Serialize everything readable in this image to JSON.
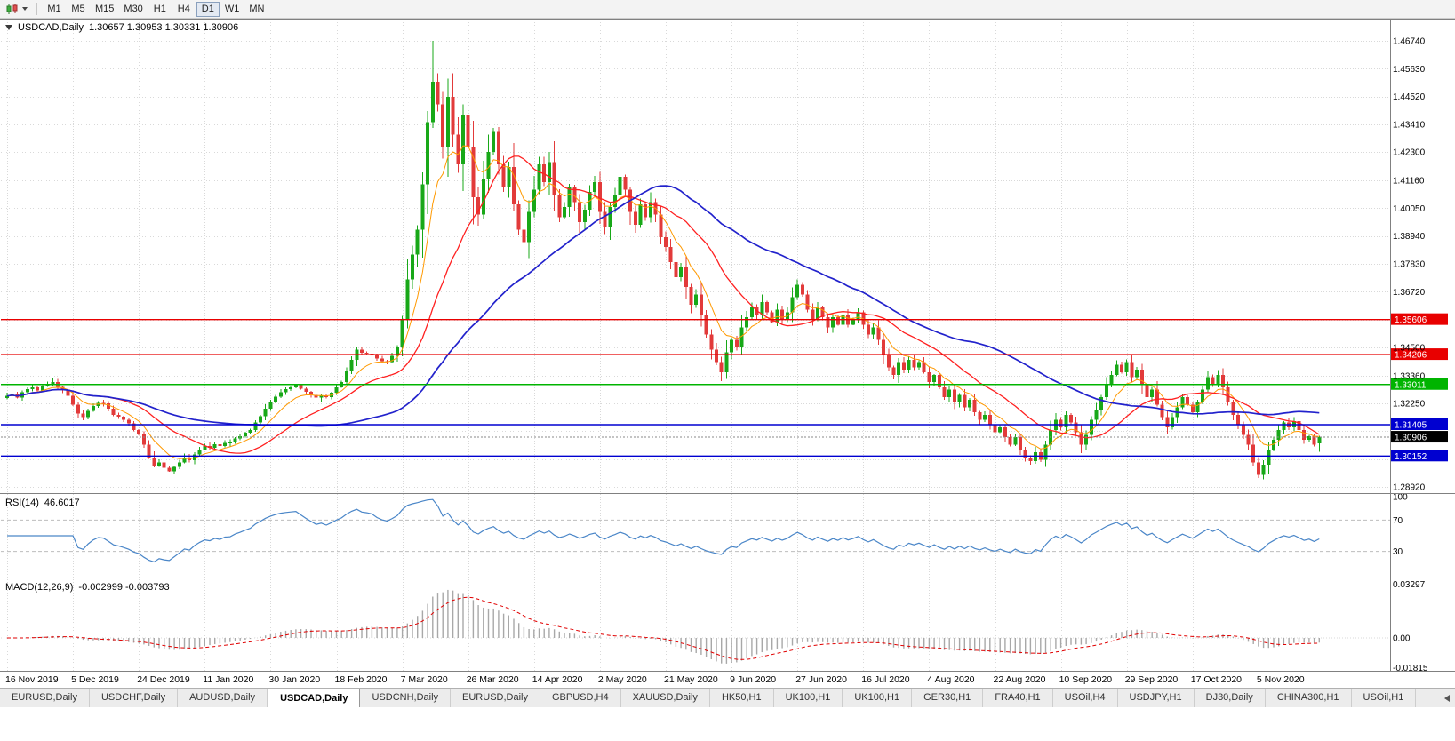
{
  "toolbar": {
    "timeframes": [
      "M1",
      "M5",
      "M15",
      "M30",
      "H1",
      "H4",
      "D1",
      "W1",
      "MN"
    ],
    "active_timeframe": "D1"
  },
  "chart": {
    "title": "USDCAD,Daily",
    "ohlc_text": "1.30657 1.30953 1.30331 1.30906"
  },
  "chart_data": {
    "type": "candlestick",
    "symbol": "USDCAD",
    "period": "Daily",
    "last_bar": {
      "open": 1.30657,
      "high": 1.30953,
      "low": 1.30331,
      "close": 1.30906
    },
    "y_axis_range": [
      1.2892,
      1.4674
    ],
    "y_tick_labels": [
      "1.46740",
      "1.45630",
      "1.44520",
      "1.43410",
      "1.42300",
      "1.41160",
      "1.40050",
      "1.38940",
      "1.37830",
      "1.36720",
      "1.34500",
      "1.33360",
      "1.32250",
      "1.28920"
    ],
    "y_gridlines": [
      1.4674,
      1.4563,
      1.4452,
      1.4341,
      1.423,
      1.4116,
      1.4005,
      1.3894,
      1.3783,
      1.3672,
      1.3561,
      1.345,
      1.3336,
      1.3225,
      1.3114,
      1.3003,
      1.2892
    ],
    "x_labels": [
      "16 Nov 2019",
      "5 Dec 2019",
      "24 Dec 2019",
      "11 Jan 2020",
      "30 Jan 2020",
      "18 Feb 2020",
      "7 Mar 2020",
      "26 Mar 2020",
      "14 Apr 2020",
      "2 May 2020",
      "21 May 2020",
      "9 Jun 2020",
      "27 Jun 2020",
      "16 Jul 2020",
      "4 Aug 2020",
      "22 Aug 2020",
      "10 Sep 2020",
      "29 Sep 2020",
      "17 Oct 2020",
      "5 Nov 2020"
    ],
    "bars_per_label": 13,
    "closes": [
      1.3255,
      1.3262,
      1.3248,
      1.327,
      1.3282,
      1.329,
      1.3278,
      1.3296,
      1.3304,
      1.331,
      1.3292,
      1.328,
      1.3255,
      1.322,
      1.3185,
      1.317,
      1.3195,
      1.3215,
      1.3228,
      1.3225,
      1.3205,
      1.318,
      1.3172,
      1.316,
      1.3145,
      1.312,
      1.3105,
      1.306,
      1.301,
      1.2975,
      1.299,
      1.2968,
      1.2955,
      1.2972,
      1.299,
      1.301,
      1.2998,
      1.3022,
      1.304,
      1.3055,
      1.3048,
      1.3062,
      1.3055,
      1.3068,
      1.307,
      1.3085,
      1.3095,
      1.3108,
      1.312,
      1.315,
      1.3175,
      1.3205,
      1.323,
      1.3252,
      1.327,
      1.3282,
      1.329,
      1.3298,
      1.3285,
      1.3272,
      1.326,
      1.3248,
      1.3258,
      1.325,
      1.3268,
      1.329,
      1.331,
      1.3355,
      1.34,
      1.344,
      1.3428,
      1.3425,
      1.342,
      1.3405,
      1.3395,
      1.339,
      1.3415,
      1.345,
      1.356,
      1.372,
      1.382,
      1.392,
      1.41,
      1.435,
      1.451,
      1.442,
      1.425,
      1.445,
      1.43,
      1.418,
      1.438,
      1.425,
      1.405,
      1.398,
      1.412,
      1.423,
      1.431,
      1.418,
      1.409,
      1.417,
      1.402,
      1.392,
      1.387,
      1.399,
      1.408,
      1.418,
      1.411,
      1.419,
      1.406,
      1.397,
      1.401,
      1.409,
      1.403,
      1.395,
      1.4,
      1.407,
      1.411,
      1.399,
      1.393,
      1.401,
      1.406,
      1.413,
      1.408,
      1.399,
      1.394,
      1.402,
      1.397,
      1.403,
      1.398,
      1.389,
      1.385,
      1.379,
      1.373,
      1.377,
      1.369,
      1.362,
      1.366,
      1.358,
      1.35,
      1.344,
      1.339,
      1.335,
      1.343,
      1.348,
      1.345,
      1.353,
      1.357,
      1.361,
      1.358,
      1.363,
      1.359,
      1.355,
      1.36,
      1.356,
      1.359,
      1.365,
      1.37,
      1.366,
      1.36,
      1.356,
      1.361,
      1.357,
      1.353,
      1.357,
      1.354,
      1.358,
      1.354,
      1.356,
      1.359,
      1.354,
      1.35,
      1.353,
      1.348,
      1.342,
      1.337,
      1.334,
      1.339,
      1.336,
      1.34,
      1.337,
      1.339,
      1.335,
      1.331,
      1.334,
      1.329,
      1.325,
      1.328,
      1.323,
      1.326,
      1.321,
      1.324,
      1.319,
      1.316,
      1.318,
      1.314,
      1.311,
      1.313,
      1.309,
      1.306,
      1.309,
      1.304,
      1.301,
      1.2995,
      1.303,
      1.3,
      1.306,
      1.312,
      1.316,
      1.313,
      1.318,
      1.315,
      1.311,
      1.306,
      1.31,
      1.316,
      1.32,
      1.325,
      1.33,
      1.334,
      1.338,
      1.335,
      1.339,
      1.333,
      1.336,
      1.33,
      1.325,
      1.328,
      1.322,
      1.317,
      1.313,
      1.317,
      1.321,
      1.325,
      1.322,
      1.319,
      1.323,
      1.328,
      1.333,
      1.33,
      1.334,
      1.329,
      1.323,
      1.318,
      1.314,
      1.31,
      1.306,
      1.299,
      1.294,
      1.298,
      1.304,
      1.308,
      1.312,
      1.315,
      1.313,
      1.3155,
      1.312,
      1.308,
      1.3095,
      1.306,
      1.30906
    ],
    "wick_overrides": {
      "32": {
        "low": 1.2952
      },
      "84": {
        "high": 1.4674
      },
      "141": {
        "low": 1.3315
      },
      "247": {
        "low": 1.2928
      },
      "259": {
        "open": 1.30657,
        "high": 1.30953,
        "low": 1.30331
      }
    },
    "candle_up_color": "#18a818",
    "candle_down_color": "#e23a3a",
    "moving_averages": [
      {
        "name": "fast-ma",
        "type": "ema",
        "period": 8,
        "color": "#ff9900"
      },
      {
        "name": "mid-ma",
        "type": "sma",
        "period": 20,
        "color": "#ff2020"
      },
      {
        "name": "slow-ma",
        "type": "sma",
        "period": 50,
        "color": "#2222cc"
      }
    ],
    "price_lines": [
      {
        "label": "1.35606",
        "value": 1.35606,
        "color": "#e80000"
      },
      {
        "label": "1.34206",
        "value": 1.34206,
        "color": "#e80000"
      },
      {
        "label": "1.33011",
        "value": 1.33011,
        "color": "#00b400"
      },
      {
        "label": "1.31405",
        "value": 1.31405,
        "color": "#0000d0"
      },
      {
        "label": "1.30152",
        "value": 1.30152,
        "color": "#0000d0"
      }
    ],
    "current_price": {
      "label": "1.30906",
      "value": 1.30906,
      "badge_color": "#000000"
    },
    "indicators": {
      "rsi": {
        "label": "RSI(14)",
        "value_label": "46.6017",
        "period": 14,
        "axis_labels": [
          "100",
          "70",
          "30"
        ],
        "dashed_levels": [
          70,
          30
        ],
        "color": "#4a86c8"
      },
      "macd": {
        "label": "MACD(12,26,9)",
        "values_label": "-0.002999 -0.003793",
        "fast": 12,
        "slow": 26,
        "signal": 9,
        "axis_labels": [
          "0.03297",
          "0.00",
          "-0.01815"
        ],
        "axis_values": [
          0.03297,
          0.0,
          -0.01815
        ],
        "hist_color": "#a8a8a8",
        "signal_color": "#e00000"
      }
    }
  },
  "tabs": {
    "items": [
      "EURUSD,Daily",
      "USDCHF,Daily",
      "AUDUSD,Daily",
      "USDCAD,Daily",
      "USDCNH,Daily",
      "EURUSD,Daily",
      "GBPUSD,H4",
      "XAUUSD,Daily",
      "HK50,H1",
      "UK100,H1",
      "UK100,H1",
      "GER30,H1",
      "FRA40,H1",
      "USOil,H4",
      "USDJPY,H1",
      "DJ30,Daily",
      "CHINA300,H1",
      "USOil,H1"
    ],
    "active_index": 3
  }
}
